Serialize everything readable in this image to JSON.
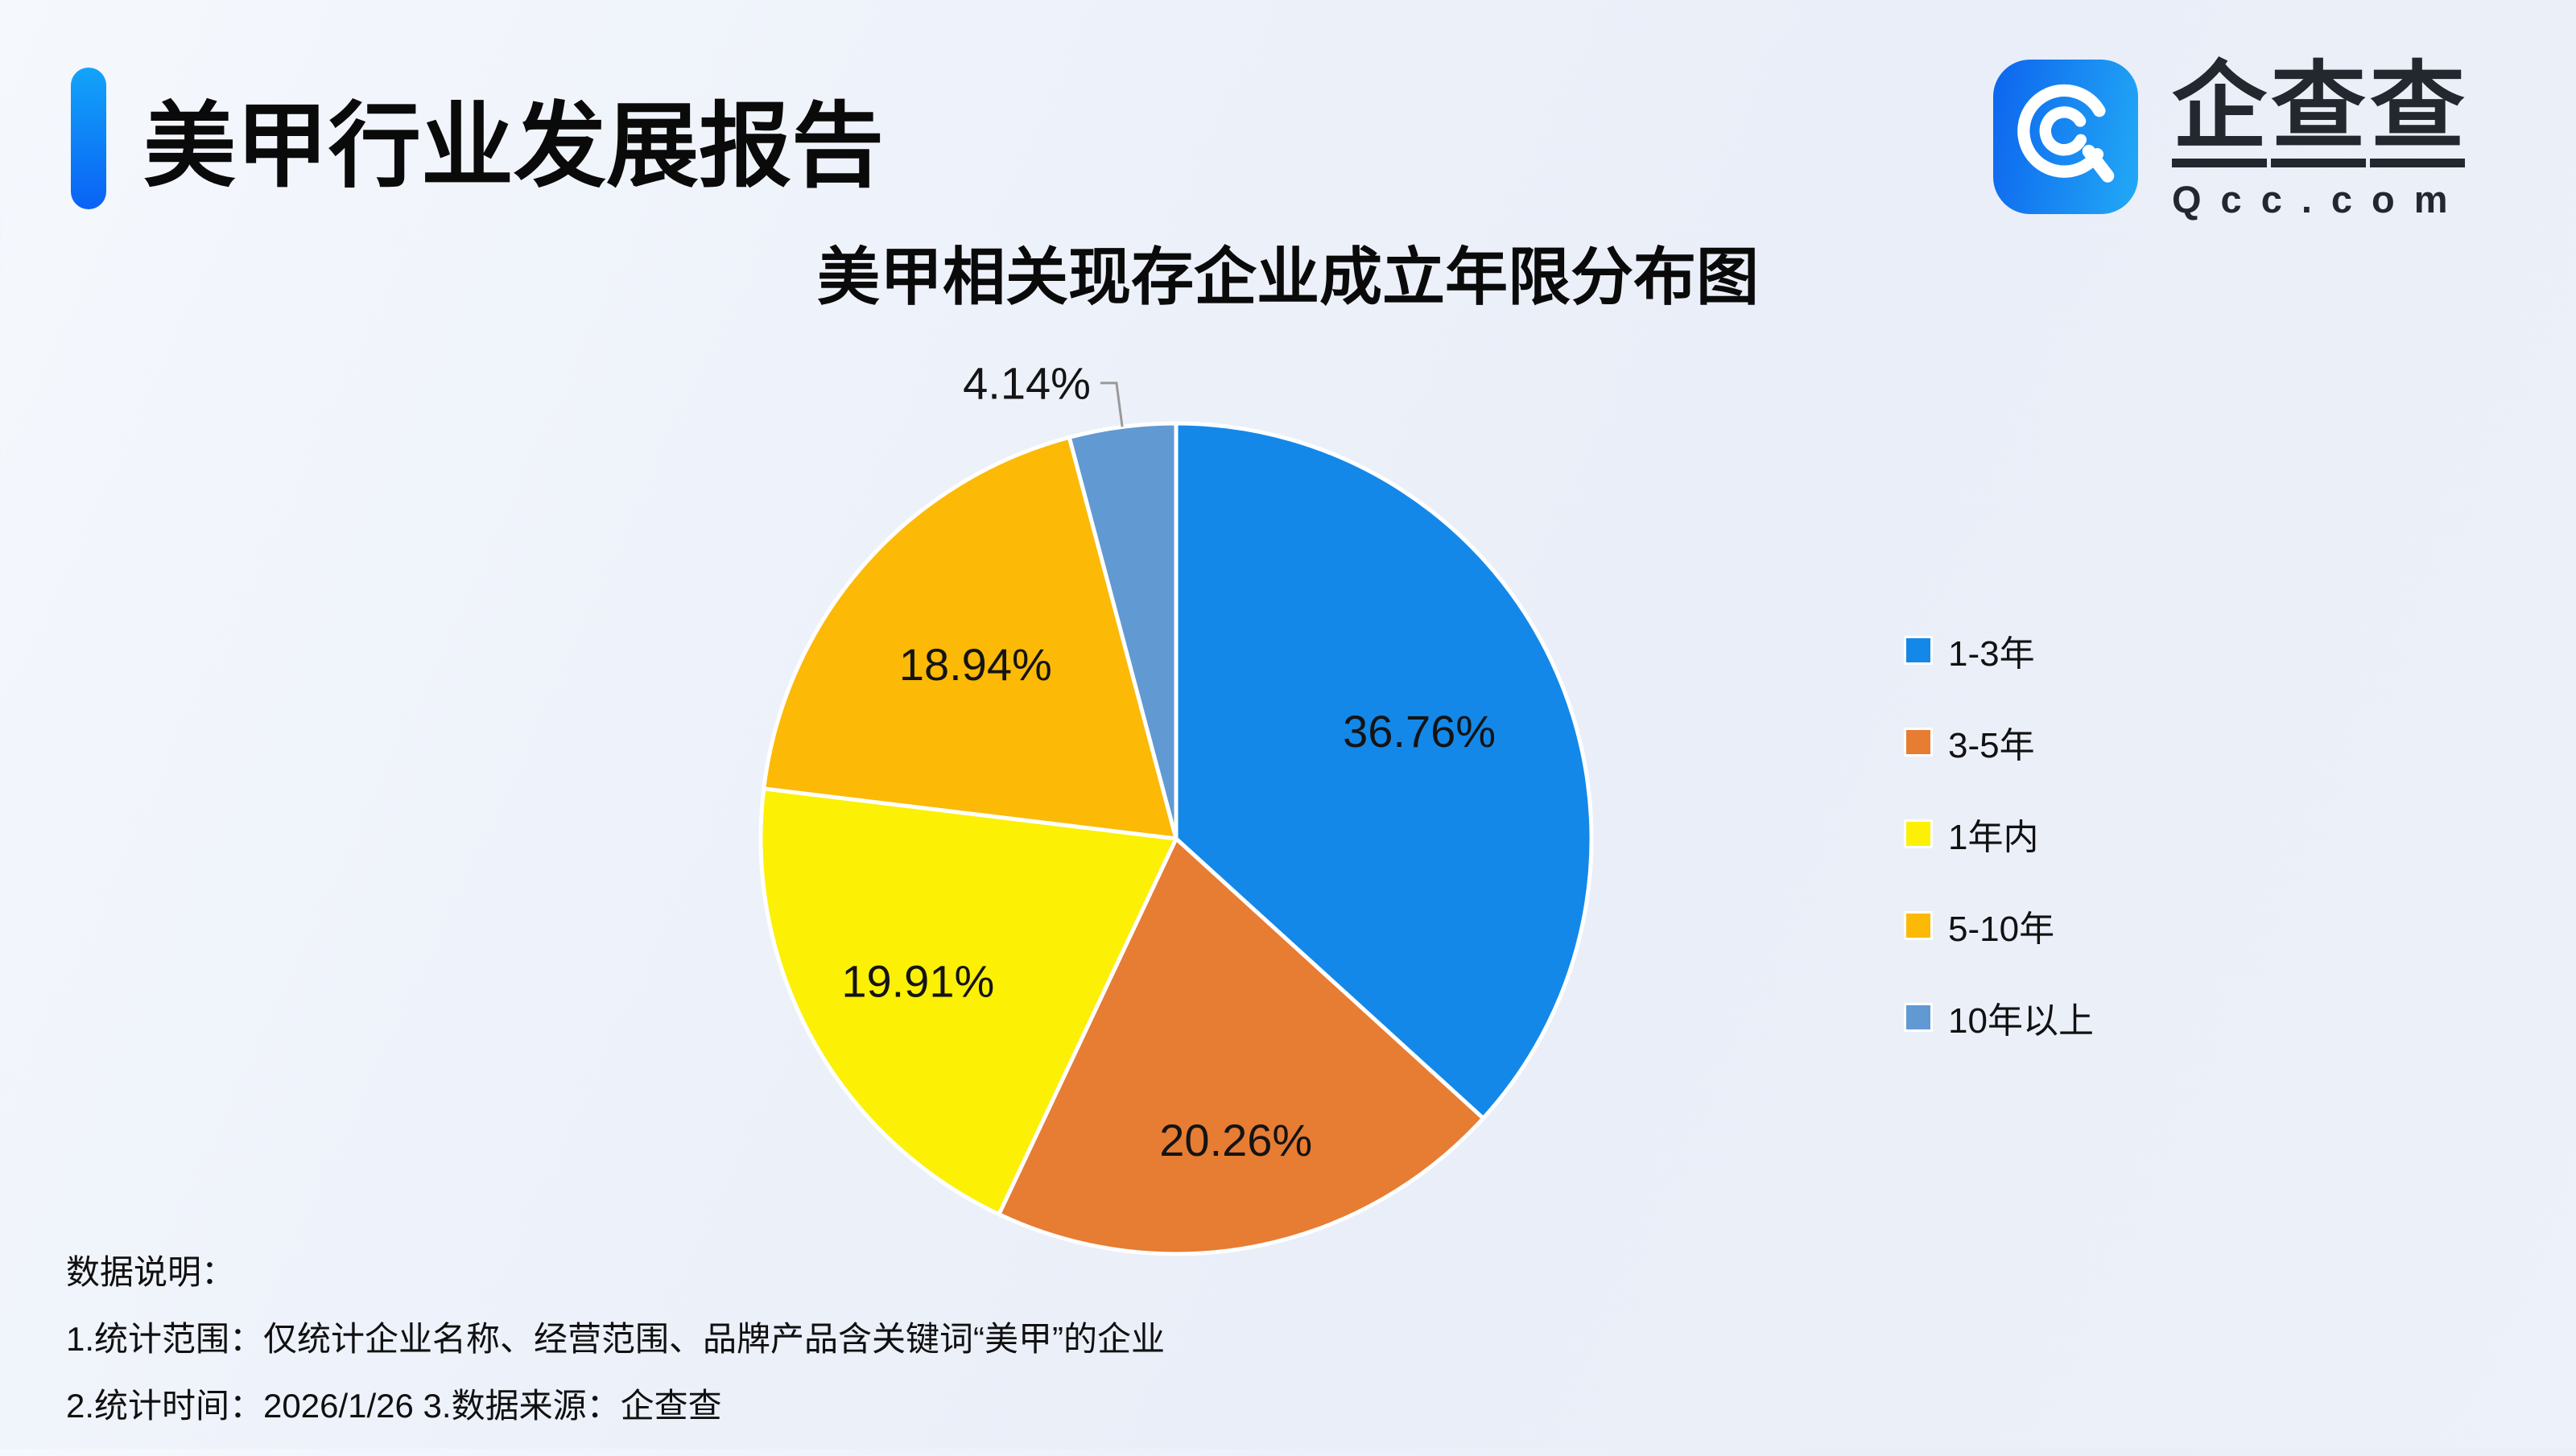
{
  "header": {
    "title": "美甲行业发展报告",
    "accent_start": "#12a4f8",
    "accent_end": "#0a62f6"
  },
  "logo": {
    "brand_chars": [
      "企",
      "查",
      "查"
    ],
    "domain": "Qcc.com",
    "icon_color_start": "#0d64ee",
    "icon_color_end": "#22aaf6"
  },
  "chart_data": {
    "type": "pie",
    "title": "美甲相关现存企业成立年限分布图",
    "categories": [
      "1-3年",
      "3-5年",
      "1年内",
      "5-10年",
      "10年以上"
    ],
    "values": [
      36.76,
      20.26,
      19.91,
      18.94,
      4.14
    ],
    "labels": [
      "36.76%",
      "20.26%",
      "19.91%",
      "18.94%",
      "4.14%"
    ],
    "colors": [
      "#1388e9",
      "#e77c33",
      "#fcf005",
      "#fcb905",
      "#6199d3"
    ],
    "label_placement": [
      "inside",
      "inside",
      "inside",
      "inside",
      "outside"
    ],
    "start_angle": 0,
    "direction": "clockwise",
    "legend_position": "right",
    "slice_border_color": "#ffffff",
    "leader_line_color": "#999999",
    "label_color": "#141414"
  },
  "footer": {
    "heading": "数据说明：",
    "notes": [
      "1.统计范围：仅统计企业名称、经营范围、品牌产品含关键词“美甲”的企业",
      "2.统计时间：2026/1/26  3.数据来源：企查查"
    ]
  }
}
